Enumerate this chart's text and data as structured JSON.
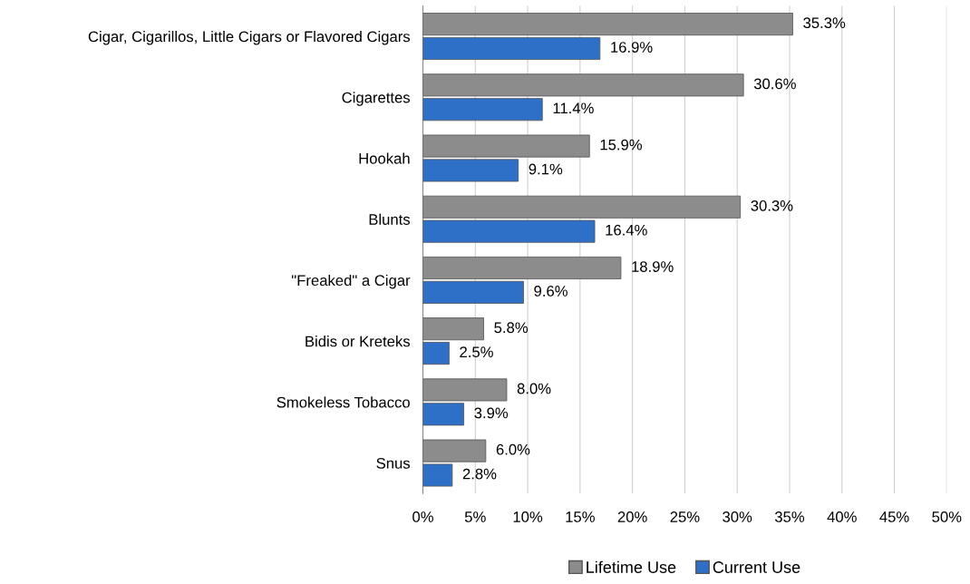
{
  "chart_data": {
    "type": "bar",
    "orientation": "horizontal",
    "categories": [
      "Cigar, Cigarillos, Little Cigars or Flavored Cigars",
      "Cigarettes",
      "Hookah",
      "Blunts",
      "\"Freaked\" a Cigar",
      "Bidis or Kreteks",
      "Smokeless Tobacco",
      "Snus"
    ],
    "series": [
      {
        "name": "Lifetime Use",
        "color": "#8c8c8c",
        "values": [
          35.3,
          30.6,
          15.9,
          30.3,
          18.9,
          5.8,
          8.0,
          6.0
        ],
        "value_labels": [
          "35.3%",
          "30.6%",
          "15.9%",
          "30.3%",
          "18.9%",
          "5.8%",
          "8.0%",
          "6.0%"
        ]
      },
      {
        "name": "Current Use",
        "color": "#2e6fc8",
        "values": [
          16.9,
          11.4,
          9.1,
          16.4,
          9.6,
          2.5,
          3.9,
          2.8
        ],
        "value_labels": [
          "16.9%",
          "11.4%",
          "9.1%",
          "16.4%",
          "9.6%",
          "2.5%",
          "3.9%",
          "2.8%"
        ]
      }
    ],
    "xlim": [
      0,
      50
    ],
    "xticks": [
      {
        "value": 0,
        "label": "0%"
      },
      {
        "value": 5,
        "label": "5%"
      },
      {
        "value": 10,
        "label": "10%"
      },
      {
        "value": 15,
        "label": "15%"
      },
      {
        "value": 20,
        "label": "20%"
      },
      {
        "value": 25,
        "label": "25%"
      },
      {
        "value": 30,
        "label": "30%"
      },
      {
        "value": 35,
        "label": "35%"
      },
      {
        "value": 40,
        "label": "40%"
      },
      {
        "value": 45,
        "label": "45%"
      },
      {
        "value": 50,
        "label": "50%"
      }
    ],
    "grid": "x",
    "legend": "bottom"
  }
}
